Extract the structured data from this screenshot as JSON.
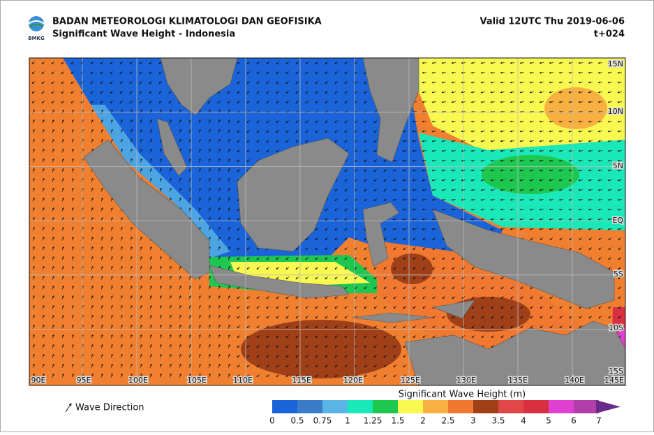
{
  "header": {
    "org": "BADAN METEOROLOGI KLIMATOLOGI DAN GEOFISIKA",
    "product": "Significant Wave Height - Indonesia",
    "valid": "Valid 12UTC Thu 2019-06-06",
    "lead": "t+024",
    "logo_text": "BMKG"
  },
  "map": {
    "lat_labels": [
      "15N",
      "10N",
      "5N",
      "EQ",
      "5S",
      "10S",
      "15S"
    ],
    "lon_labels": [
      "90E",
      "95E",
      "100E",
      "105E",
      "110E",
      "115E",
      "120E",
      "125E",
      "130E",
      "135E",
      "140E",
      "145E"
    ]
  },
  "legend": {
    "direction_label": "Wave Direction",
    "title": "Significant Wave Height (m)",
    "ticks": [
      0,
      0.5,
      0.75,
      1,
      1.25,
      1.5,
      2,
      2.5,
      3,
      3.5,
      4,
      5,
      6,
      7
    ],
    "colors": [
      "#1a63d8",
      "#3a7cc8",
      "#5ab4e6",
      "#1ae8b8",
      "#1ec850",
      "#f8f850",
      "#f8b040",
      "#f07830",
      "#a04018",
      "#e04848",
      "#d83040",
      "#e040d0",
      "#b040a8",
      "#6a2a8a"
    ]
  }
}
